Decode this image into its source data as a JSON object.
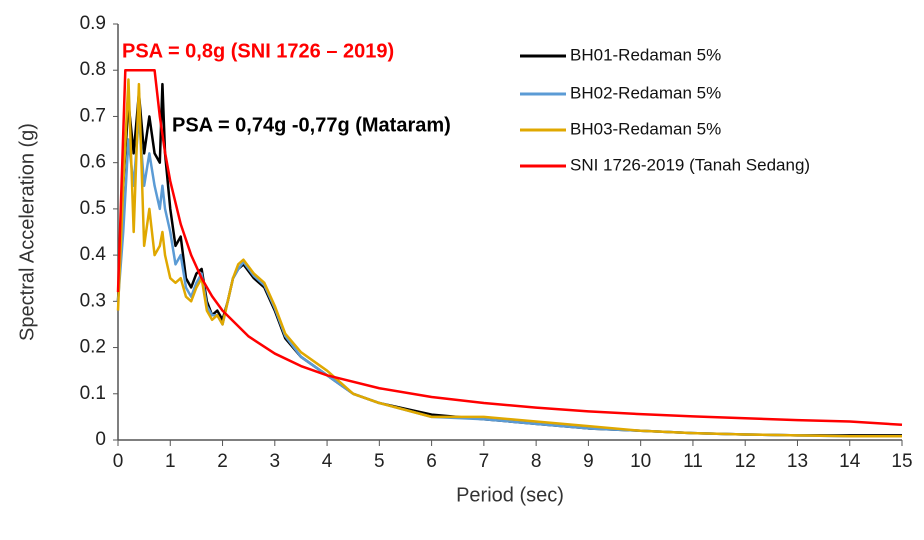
{
  "chart_data": {
    "type": "line",
    "xlabel": "Period (sec)",
    "ylabel": "Spectral Acceleration (g)",
    "xlim": [
      0,
      15
    ],
    "ylim": [
      0,
      0.9
    ],
    "xticks": [
      0,
      1,
      2,
      3,
      4,
      5,
      6,
      7,
      8,
      9,
      10,
      11,
      12,
      13,
      14,
      15
    ],
    "yticks": [
      0,
      0.1,
      0.2,
      0.3,
      0.4,
      0.5,
      0.6,
      0.7,
      0.8,
      0.9
    ],
    "legend": "upper right",
    "grid": false,
    "annotations": [
      {
        "text": "PSA = 0,8g (SNI 1726 – 2019)",
        "color": "#ff0000"
      },
      {
        "text": "PSA = 0,74g -0,77g (Mataram)",
        "color": "#000000"
      }
    ],
    "series": [
      {
        "name": "BH01-Redaman 5%",
        "color": "#000000",
        "x": [
          0,
          0.1,
          0.2,
          0.3,
          0.4,
          0.5,
          0.6,
          0.7,
          0.8,
          0.85,
          0.9,
          1,
          1.1,
          1.2,
          1.3,
          1.4,
          1.5,
          1.6,
          1.7,
          1.8,
          1.9,
          2,
          2.1,
          2.2,
          2.3,
          2.4,
          2.6,
          2.8,
          3,
          3.2,
          3.5,
          4,
          4.5,
          5,
          6,
          7,
          8,
          9,
          10,
          11,
          12,
          13,
          14,
          15
        ],
        "values": [
          0.3,
          0.55,
          0.73,
          0.62,
          0.75,
          0.62,
          0.7,
          0.62,
          0.6,
          0.77,
          0.62,
          0.5,
          0.42,
          0.44,
          0.35,
          0.33,
          0.36,
          0.37,
          0.3,
          0.27,
          0.28,
          0.26,
          0.3,
          0.35,
          0.37,
          0.38,
          0.35,
          0.33,
          0.28,
          0.22,
          0.18,
          0.14,
          0.1,
          0.08,
          0.055,
          0.045,
          0.035,
          0.025,
          0.02,
          0.015,
          0.012,
          0.01,
          0.01,
          0.01
        ]
      },
      {
        "name": "BH02-Redaman 5%",
        "color": "#5b9bd5",
        "x": [
          0,
          0.1,
          0.2,
          0.3,
          0.4,
          0.5,
          0.6,
          0.7,
          0.8,
          0.85,
          0.9,
          1,
          1.1,
          1.2,
          1.3,
          1.4,
          1.5,
          1.6,
          1.7,
          1.8,
          1.9,
          2,
          2.1,
          2.2,
          2.3,
          2.4,
          2.6,
          2.8,
          3,
          3.2,
          3.5,
          4,
          4.5,
          5,
          6,
          7,
          8,
          9,
          10,
          11,
          12,
          13,
          14,
          15
        ],
        "values": [
          0.3,
          0.45,
          0.65,
          0.55,
          0.7,
          0.55,
          0.62,
          0.55,
          0.5,
          0.55,
          0.5,
          0.45,
          0.38,
          0.4,
          0.33,
          0.31,
          0.34,
          0.36,
          0.29,
          0.27,
          0.27,
          0.25,
          0.3,
          0.35,
          0.37,
          0.385,
          0.355,
          0.335,
          0.285,
          0.225,
          0.18,
          0.14,
          0.1,
          0.08,
          0.05,
          0.045,
          0.035,
          0.025,
          0.02,
          0.015,
          0.012,
          0.01,
          0.008,
          0.008
        ]
      },
      {
        "name": "BH03-Redaman 5%",
        "color": "#e0a800",
        "x": [
          0,
          0.1,
          0.2,
          0.3,
          0.4,
          0.5,
          0.6,
          0.7,
          0.8,
          0.85,
          0.9,
          1,
          1.1,
          1.2,
          1.3,
          1.4,
          1.5,
          1.6,
          1.7,
          1.8,
          1.9,
          2,
          2.1,
          2.2,
          2.3,
          2.4,
          2.6,
          2.8,
          3,
          3.2,
          3.5,
          4,
          4.5,
          5,
          6,
          7,
          8,
          9,
          10,
          11,
          12,
          13,
          14,
          15
        ],
        "values": [
          0.28,
          0.55,
          0.78,
          0.45,
          0.77,
          0.42,
          0.5,
          0.4,
          0.42,
          0.45,
          0.4,
          0.35,
          0.34,
          0.35,
          0.31,
          0.3,
          0.33,
          0.35,
          0.28,
          0.26,
          0.27,
          0.25,
          0.3,
          0.35,
          0.38,
          0.39,
          0.36,
          0.34,
          0.29,
          0.23,
          0.19,
          0.15,
          0.1,
          0.08,
          0.05,
          0.05,
          0.04,
          0.03,
          0.02,
          0.015,
          0.012,
          0.01,
          0.008,
          0.008
        ]
      },
      {
        "name": "SNI 1726-2019 (Tanah Sedang)",
        "color": "#ff0000",
        "x": [
          0,
          0.14,
          0.7,
          0.8,
          0.9,
          1,
          1.2,
          1.4,
          1.6,
          1.8,
          2,
          2.5,
          3,
          3.5,
          4,
          5,
          6,
          7,
          8,
          9,
          10,
          11,
          12,
          13,
          14,
          15
        ],
        "values": [
          0.32,
          0.8,
          0.8,
          0.7,
          0.622,
          0.56,
          0.467,
          0.4,
          0.35,
          0.311,
          0.28,
          0.224,
          0.187,
          0.16,
          0.14,
          0.112,
          0.093,
          0.08,
          0.07,
          0.062,
          0.056,
          0.051,
          0.047,
          0.043,
          0.04,
          0.033
        ]
      }
    ]
  }
}
